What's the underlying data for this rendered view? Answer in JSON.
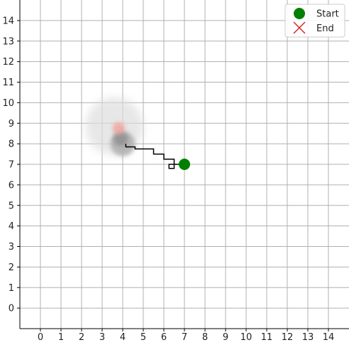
{
  "chart_data": {
    "type": "line",
    "title": "",
    "xlabel": "",
    "ylabel": "",
    "xlim": [
      -1,
      15
    ],
    "ylim": [
      -1,
      15
    ],
    "x_ticks": [
      0,
      1,
      2,
      3,
      4,
      5,
      6,
      7,
      8,
      9,
      10,
      11,
      12,
      13,
      14
    ],
    "y_ticks": [
      0,
      1,
      2,
      3,
      4,
      5,
      6,
      7,
      8,
      9,
      10,
      11,
      12,
      13,
      14
    ],
    "x_tick_labels": [
      "0",
      "1",
      "2",
      "3",
      "4",
      "5",
      "6",
      "7",
      "8",
      "9",
      "10",
      "11",
      "12",
      "13",
      "14"
    ],
    "y_tick_labels": [
      "0",
      "1",
      "2",
      "3",
      "4",
      "5",
      "6",
      "7",
      "8",
      "9",
      "10",
      "11",
      "12",
      "13",
      "14"
    ],
    "grid": true,
    "legend_placement": "top-right",
    "path": {
      "color": "#000000",
      "x": [
        7.0,
        6.25,
        6.25,
        6.5,
        6.5,
        6.0,
        6.0,
        5.5,
        5.5,
        4.6,
        4.6,
        4.15,
        4.15
      ],
      "y": [
        7.0,
        7.0,
        6.8,
        6.8,
        7.25,
        7.25,
        7.5,
        7.5,
        7.75,
        7.75,
        7.85,
        7.85,
        8.0
      ]
    },
    "blobs": [
      {
        "x": 3.6,
        "y": 8.85,
        "radius": 1.4,
        "color": "#dddddd",
        "opacity": 0.7
      },
      {
        "x": 4.0,
        "y": 8.0,
        "radius": 0.6,
        "color": "#aaaaaa",
        "opacity": 0.8
      },
      {
        "x": 3.9,
        "y": 8.25,
        "radius": 0.35,
        "color": "#888888",
        "opacity": 0.7
      },
      {
        "x": 3.8,
        "y": 8.75,
        "radius": 0.3,
        "color": "#f0a09a",
        "opacity": 0.8
      }
    ],
    "start": {
      "x": 7,
      "y": 7,
      "label": "Start",
      "color": "#008000",
      "marker": "circle"
    },
    "end": {
      "label": "End",
      "color": "#d62728",
      "marker": "x"
    }
  }
}
